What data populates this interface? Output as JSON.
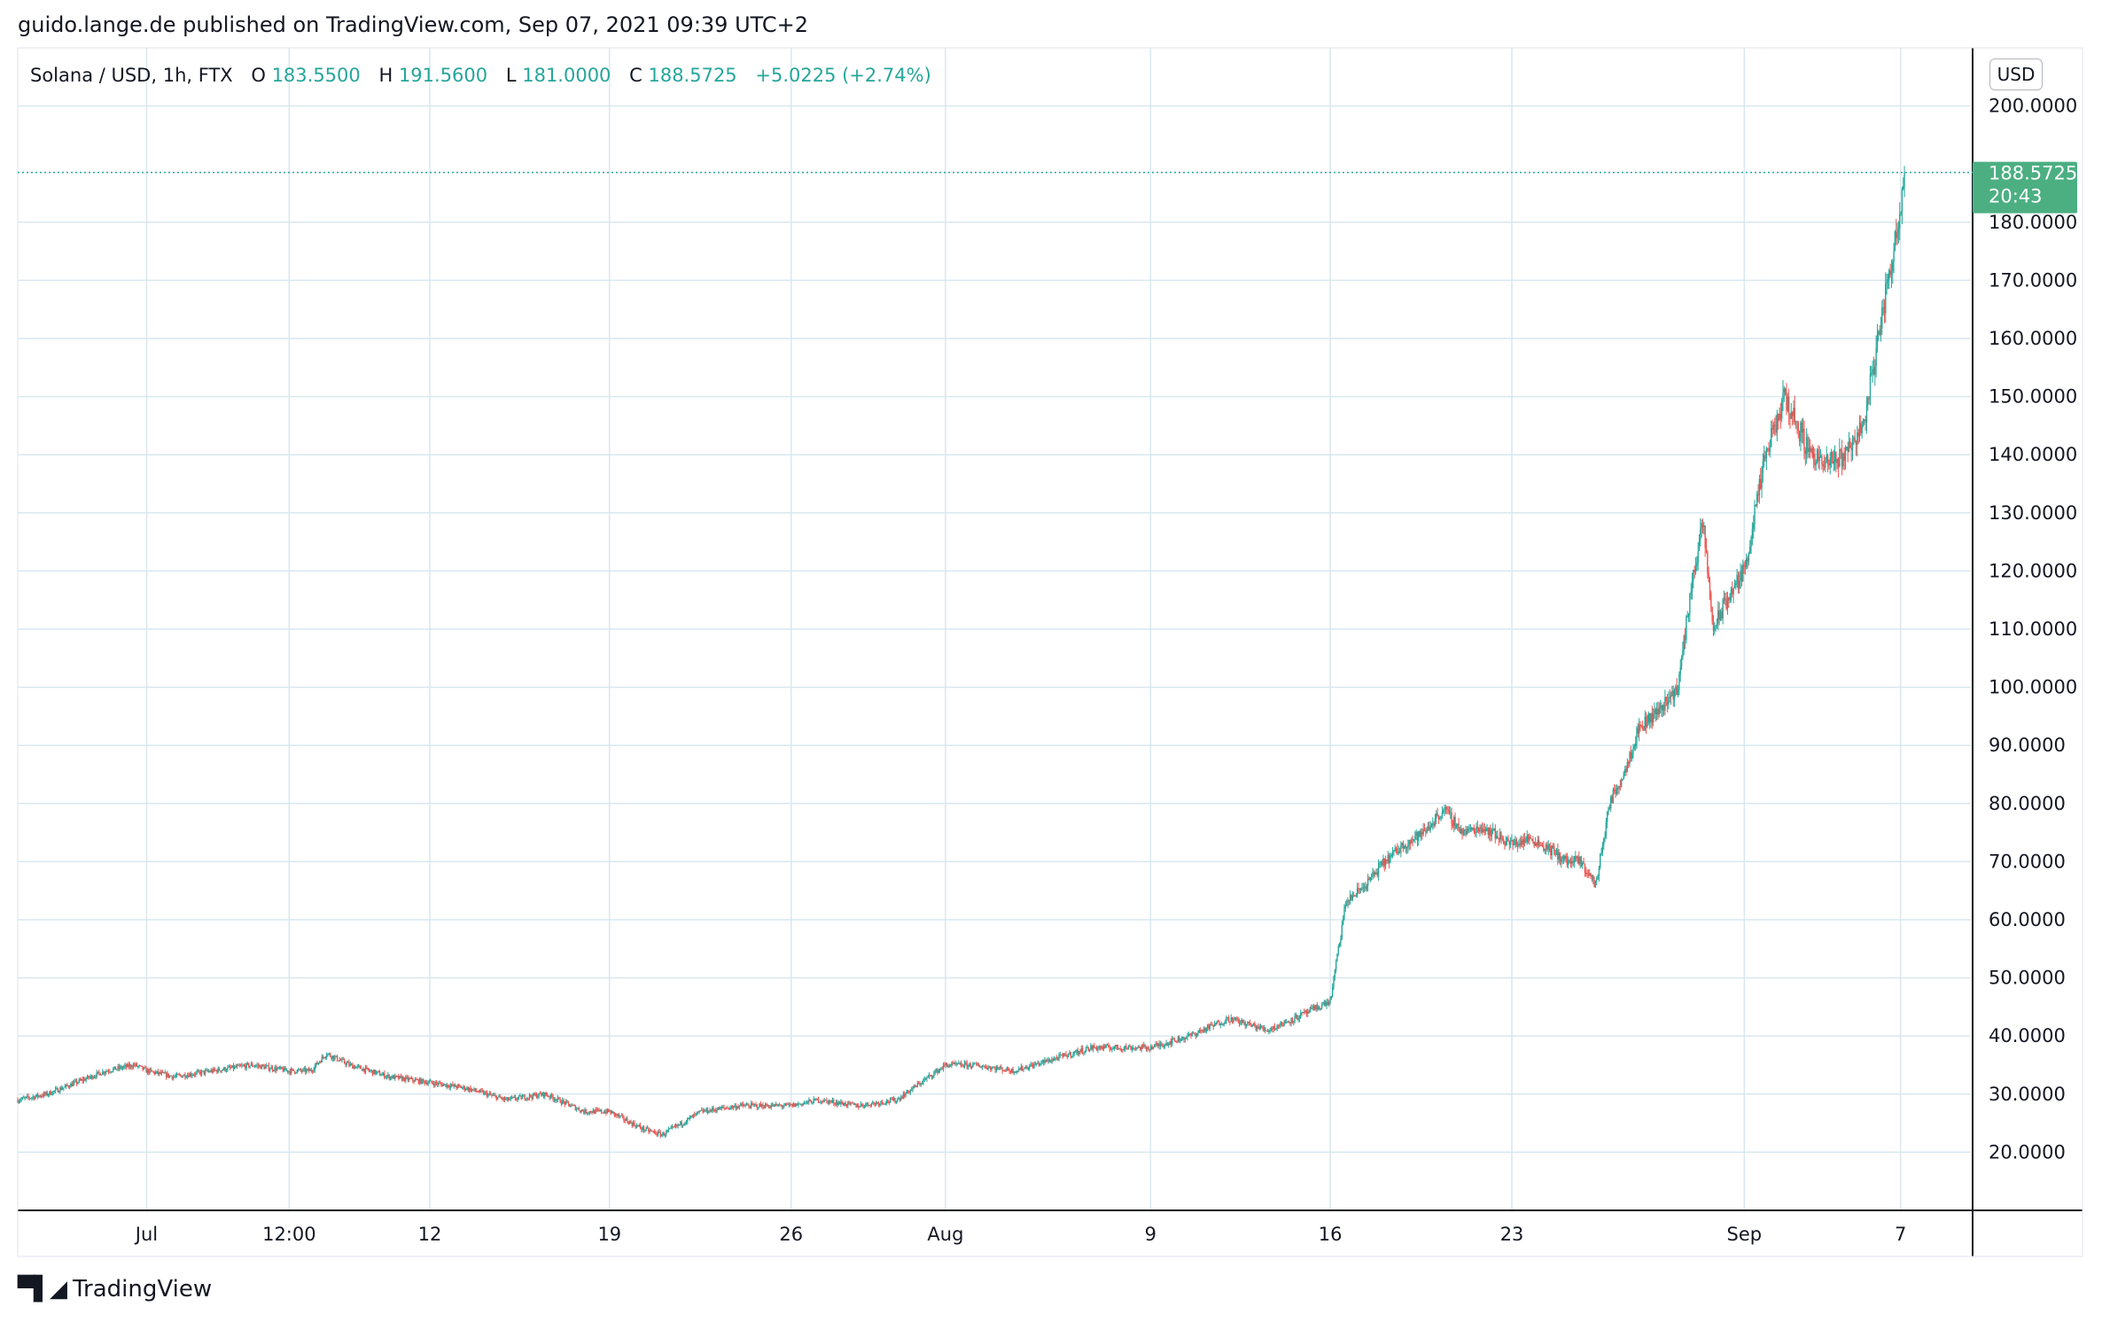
{
  "header": {
    "attribution": "guido.lange.de published on TradingView.com, Sep 07, 2021 09:39 UTC+2"
  },
  "legend": {
    "symbol": "Solana / USD, 1h, FTX",
    "open_label": "O",
    "open": "183.5500",
    "high_label": "H",
    "high": "191.5600",
    "low_label": "L",
    "low": "181.0000",
    "close_label": "C",
    "close": "188.5725",
    "change": "+5.0225 (+2.74%)"
  },
  "price_tag": {
    "price": "188.5725",
    "countdown": "20:43"
  },
  "currency": "USD",
  "footer": {
    "brand": "TradingView"
  },
  "colors": {
    "up": "#26a69a",
    "down": "#ef5350",
    "tag": "#4caf82",
    "grid": "#d9e7ef"
  },
  "chart_data": {
    "type": "candlestick",
    "ylim": [
      10,
      210
    ],
    "yticks": [
      20,
      30,
      40,
      50,
      60,
      70,
      80,
      90,
      100,
      110,
      120,
      130,
      140,
      150,
      160,
      170,
      180,
      200
    ],
    "ytick_labels": [
      "20.0000",
      "30.0000",
      "40.0000",
      "50.0000",
      "60.0000",
      "70.0000",
      "80.0000",
      "90.0000",
      "100.0000",
      "110.0000",
      "120.0000",
      "130.0000",
      "140.0000",
      "150.0000",
      "160.0000",
      "170.0000",
      "180.0000",
      "200.0000"
    ],
    "x_domain": [
      0,
      1000
    ],
    "xticks": [
      {
        "label": "Jul",
        "pos": 66
      },
      {
        "label": "12:00",
        "pos": 139
      },
      {
        "label": "12",
        "pos": 211
      },
      {
        "label": "19",
        "pos": 303
      },
      {
        "label": "26",
        "pos": 396
      },
      {
        "label": "Aug",
        "pos": 475
      },
      {
        "label": "9",
        "pos": 580
      },
      {
        "label": "16",
        "pos": 672
      },
      {
        "label": "23",
        "pos": 765
      },
      {
        "label": "Sep",
        "pos": 884
      },
      {
        "label": "7",
        "pos": 964
      }
    ],
    "last_price": 188.5725,
    "close_path": [
      [
        0,
        29
      ],
      [
        15,
        30
      ],
      [
        30,
        32
      ],
      [
        45,
        34
      ],
      [
        60,
        35
      ],
      [
        66,
        34
      ],
      [
        80,
        33
      ],
      [
        100,
        34
      ],
      [
        120,
        35
      ],
      [
        139,
        34
      ],
      [
        150,
        34
      ],
      [
        158,
        37
      ],
      [
        170,
        35
      ],
      [
        190,
        33
      ],
      [
        211,
        32
      ],
      [
        230,
        31
      ],
      [
        250,
        29
      ],
      [
        270,
        30
      ],
      [
        290,
        27
      ],
      [
        303,
        27
      ],
      [
        320,
        24
      ],
      [
        330,
        23
      ],
      [
        350,
        27
      ],
      [
        370,
        28
      ],
      [
        396,
        28
      ],
      [
        410,
        29
      ],
      [
        430,
        28
      ],
      [
        450,
        29
      ],
      [
        475,
        35
      ],
      [
        490,
        35
      ],
      [
        510,
        34
      ],
      [
        530,
        36
      ],
      [
        550,
        38
      ],
      [
        570,
        38
      ],
      [
        580,
        38
      ],
      [
        600,
        40
      ],
      [
        620,
        43
      ],
      [
        640,
        41
      ],
      [
        660,
        44
      ],
      [
        672,
        46
      ],
      [
        680,
        63
      ],
      [
        690,
        66
      ],
      [
        700,
        70
      ],
      [
        710,
        73
      ],
      [
        720,
        75
      ],
      [
        730,
        79
      ],
      [
        740,
        75
      ],
      [
        750,
        76
      ],
      [
        765,
        73
      ],
      [
        775,
        74
      ],
      [
        785,
        72
      ],
      [
        793,
        70
      ],
      [
        800,
        70
      ],
      [
        808,
        66
      ],
      [
        815,
        80
      ],
      [
        822,
        85
      ],
      [
        830,
        93
      ],
      [
        840,
        96
      ],
      [
        850,
        100
      ],
      [
        858,
        120
      ],
      [
        863,
        128
      ],
      [
        868,
        110
      ],
      [
        875,
        115
      ],
      [
        884,
        120
      ],
      [
        895,
        140
      ],
      [
        905,
        150
      ],
      [
        915,
        142
      ],
      [
        925,
        138
      ],
      [
        935,
        140
      ],
      [
        945,
        145
      ],
      [
        955,
        165
      ],
      [
        962,
        178
      ],
      [
        966,
        188.57
      ]
    ]
  }
}
